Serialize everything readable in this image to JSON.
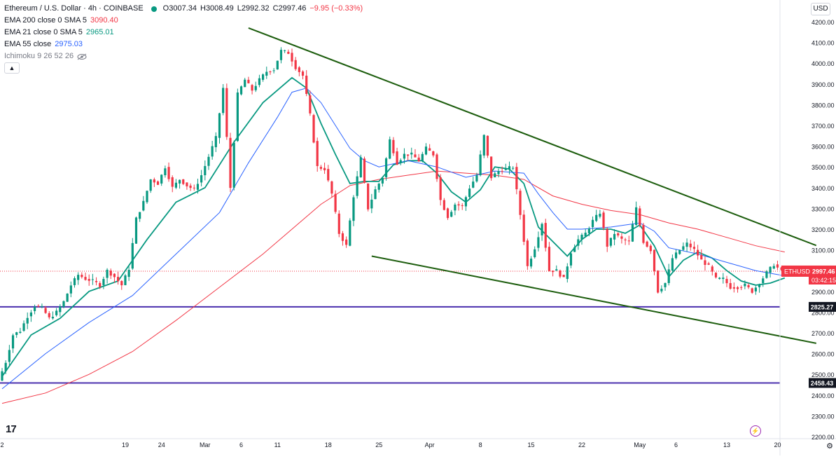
{
  "header": {
    "symbol_title": "Ethereum / U.S. Dollar · 4h · COINBASE",
    "ohlc": {
      "open": "O3007.34",
      "high": "H3008.49",
      "low": "L2992.32",
      "close": "C2997.46",
      "change": "−9.95 (−0.33%)"
    },
    "indicators": [
      {
        "label": "EMA 200 close 0 SMA 5",
        "value": "3090.40",
        "color": "#f23645"
      },
      {
        "label": "EMA 21 close 0 SMA 5",
        "value": "2965.01",
        "color": "#089981"
      },
      {
        "label": "EMA 55 close",
        "value": "2975.03",
        "color": "#2962ff"
      },
      {
        "label": "Ichimoku 9 26 52 26",
        "value": "",
        "color": "#787b86"
      }
    ]
  },
  "currency": "USD",
  "price_labels": {
    "last_symbol": "ETHUSD",
    "last_price": "2997.46",
    "countdown": "03:42:15",
    "level_upper": "2825.27",
    "level_lower": "2458.43"
  },
  "colors": {
    "up": "#089981",
    "down": "#f23645",
    "ema200": "#f23645",
    "ema21": "#089981",
    "ema55": "#2962ff",
    "trendline": "#1e5e0f",
    "horizontal": "#4a2fae"
  },
  "chart_data": {
    "type": "line",
    "title": "Ethereum / U.S. Dollar · 4h · COINBASE",
    "xlabel": "",
    "ylabel": "",
    "ylim": [
      2200,
      4250
    ],
    "y_ticks": [
      2200,
      2300,
      2400,
      2500,
      2600,
      2700,
      2800,
      2900,
      3000,
      3100,
      3200,
      3300,
      3400,
      3500,
      3600,
      3700,
      3800,
      3900,
      4000,
      4100,
      4200
    ],
    "x_ticks": [
      "2",
      "19",
      "24",
      "Mar",
      "6",
      "11",
      "18",
      "25",
      "Apr",
      "8",
      "15",
      "22",
      "May",
      "6",
      "13",
      "20"
    ],
    "x_tick_days": [
      0,
      17,
      22,
      28,
      33,
      38,
      45,
      52,
      59,
      66,
      73,
      80,
      88,
      93,
      100,
      107
    ],
    "grid": false,
    "price_path": [
      [
        0,
        2470
      ],
      [
        1,
        2560
      ],
      [
        2,
        2690
      ],
      [
        3,
        2710
      ],
      [
        4,
        2780
      ],
      [
        5,
        2830
      ],
      [
        6,
        2820
      ],
      [
        7,
        2770
      ],
      [
        8,
        2800
      ],
      [
        9,
        2850
      ],
      [
        10,
        2930
      ],
      [
        11,
        2980
      ],
      [
        12,
        2960
      ],
      [
        13,
        2950
      ],
      [
        14,
        2930
      ],
      [
        15,
        3000
      ],
      [
        16,
        2970
      ],
      [
        17,
        2930
      ],
      [
        18,
        3010
      ],
      [
        19,
        3250
      ],
      [
        20,
        3330
      ],
      [
        21,
        3440
      ],
      [
        22,
        3420
      ],
      [
        23,
        3500
      ],
      [
        24,
        3400
      ],
      [
        25,
        3440
      ],
      [
        26,
        3410
      ],
      [
        27,
        3390
      ],
      [
        28,
        3460
      ],
      [
        29,
        3550
      ],
      [
        30,
        3640
      ],
      [
        31,
        3880
      ],
      [
        32,
        3400
      ],
      [
        33,
        3850
      ],
      [
        34,
        3920
      ],
      [
        35,
        3870
      ],
      [
        36,
        3920
      ],
      [
        37,
        3960
      ],
      [
        38,
        3970
      ],
      [
        39,
        4060
      ],
      [
        40,
        4050
      ],
      [
        41,
        3980
      ],
      [
        42,
        3940
      ],
      [
        43,
        3750
      ],
      [
        44,
        3500
      ],
      [
        45,
        3490
      ],
      [
        46,
        3370
      ],
      [
        47,
        3180
      ],
      [
        48,
        3120
      ],
      [
        49,
        3360
      ],
      [
        50,
        3540
      ],
      [
        51,
        3300
      ],
      [
        52,
        3390
      ],
      [
        53,
        3450
      ],
      [
        54,
        3630
      ],
      [
        55,
        3520
      ],
      [
        56,
        3560
      ],
      [
        57,
        3560
      ],
      [
        58,
        3530
      ],
      [
        59,
        3590
      ],
      [
        60,
        3560
      ],
      [
        61,
        3340
      ],
      [
        62,
        3260
      ],
      [
        63,
        3320
      ],
      [
        64,
        3310
      ],
      [
        65,
        3400
      ],
      [
        66,
        3460
      ],
      [
        67,
        3650
      ],
      [
        68,
        3450
      ],
      [
        69,
        3480
      ],
      [
        70,
        3490
      ],
      [
        71,
        3500
      ],
      [
        72,
        3270
      ],
      [
        73,
        3020
      ],
      [
        74,
        3110
      ],
      [
        75,
        3230
      ],
      [
        76,
        3000
      ],
      [
        77,
        3000
      ],
      [
        78,
        2960
      ],
      [
        79,
        3090
      ],
      [
        80,
        3150
      ],
      [
        81,
        3180
      ],
      [
        82,
        3240
      ],
      [
        83,
        3280
      ],
      [
        84,
        3120
      ],
      [
        85,
        3180
      ],
      [
        86,
        3150
      ],
      [
        87,
        3140
      ],
      [
        88,
        3300
      ],
      [
        89,
        3140
      ],
      [
        90,
        3100
      ],
      [
        91,
        2900
      ],
      [
        92,
        2940
      ],
      [
        93,
        3060
      ],
      [
        94,
        3100
      ],
      [
        95,
        3130
      ],
      [
        96,
        3100
      ],
      [
        97,
        3050
      ],
      [
        98,
        3020
      ],
      [
        99,
        2960
      ],
      [
        100,
        2960
      ],
      [
        101,
        2920
      ],
      [
        102,
        2920
      ],
      [
        103,
        2930
      ],
      [
        104,
        2900
      ],
      [
        105,
        2940
      ],
      [
        106,
        2990
      ],
      [
        107,
        3030
      ],
      [
        108,
        2997
      ]
    ],
    "series": [
      {
        "name": "EMA 200 close 0 SMA 5",
        "points": [
          [
            0,
            2360
          ],
          [
            6,
            2410
          ],
          [
            12,
            2500
          ],
          [
            18,
            2610
          ],
          [
            24,
            2760
          ],
          [
            30,
            2920
          ],
          [
            36,
            3080
          ],
          [
            40,
            3200
          ],
          [
            44,
            3320
          ],
          [
            48,
            3410
          ],
          [
            52,
            3440
          ],
          [
            56,
            3460
          ],
          [
            60,
            3480
          ],
          [
            64,
            3470
          ],
          [
            68,
            3460
          ],
          [
            72,
            3440
          ],
          [
            76,
            3360
          ],
          [
            80,
            3320
          ],
          [
            84,
            3290
          ],
          [
            88,
            3270
          ],
          [
            92,
            3230
          ],
          [
            96,
            3200
          ],
          [
            100,
            3160
          ],
          [
            104,
            3120
          ],
          [
            108,
            3090
          ]
        ]
      },
      {
        "name": "EMA 21 close 0 SMA 5",
        "points": [
          [
            0,
            2490
          ],
          [
            4,
            2690
          ],
          [
            8,
            2770
          ],
          [
            12,
            2900
          ],
          [
            16,
            2950
          ],
          [
            20,
            3150
          ],
          [
            24,
            3330
          ],
          [
            28,
            3400
          ],
          [
            32,
            3620
          ],
          [
            36,
            3810
          ],
          [
            40,
            3930
          ],
          [
            42,
            3880
          ],
          [
            44,
            3710
          ],
          [
            46,
            3560
          ],
          [
            48,
            3420
          ],
          [
            50,
            3430
          ],
          [
            52,
            3430
          ],
          [
            54,
            3510
          ],
          [
            56,
            3530
          ],
          [
            58,
            3530
          ],
          [
            60,
            3470
          ],
          [
            62,
            3380
          ],
          [
            64,
            3330
          ],
          [
            66,
            3390
          ],
          [
            68,
            3500
          ],
          [
            70,
            3490
          ],
          [
            72,
            3420
          ],
          [
            74,
            3210
          ],
          [
            76,
            3140
          ],
          [
            78,
            3070
          ],
          [
            80,
            3150
          ],
          [
            82,
            3200
          ],
          [
            84,
            3200
          ],
          [
            86,
            3180
          ],
          [
            88,
            3220
          ],
          [
            90,
            3120
          ],
          [
            92,
            2970
          ],
          [
            94,
            3050
          ],
          [
            96,
            3090
          ],
          [
            98,
            3060
          ],
          [
            100,
            3000
          ],
          [
            102,
            2950
          ],
          [
            104,
            2930
          ],
          [
            106,
            2940
          ],
          [
            108,
            2965
          ]
        ]
      },
      {
        "name": "EMA 55 close",
        "points": [
          [
            0,
            2430
          ],
          [
            6,
            2600
          ],
          [
            12,
            2750
          ],
          [
            18,
            2880
          ],
          [
            24,
            3080
          ],
          [
            30,
            3280
          ],
          [
            34,
            3520
          ],
          [
            38,
            3740
          ],
          [
            40,
            3860
          ],
          [
            42,
            3880
          ],
          [
            44,
            3810
          ],
          [
            46,
            3700
          ],
          [
            48,
            3590
          ],
          [
            50,
            3530
          ],
          [
            52,
            3500
          ],
          [
            56,
            3530
          ],
          [
            60,
            3500
          ],
          [
            64,
            3450
          ],
          [
            68,
            3480
          ],
          [
            72,
            3470
          ],
          [
            74,
            3370
          ],
          [
            76,
            3280
          ],
          [
            78,
            3200
          ],
          [
            80,
            3200
          ],
          [
            84,
            3210
          ],
          [
            88,
            3230
          ],
          [
            90,
            3190
          ],
          [
            92,
            3110
          ],
          [
            96,
            3080
          ],
          [
            100,
            3040
          ],
          [
            104,
            3000
          ],
          [
            108,
            2975
          ]
        ]
      }
    ],
    "annotations": {
      "trendlines": [
        {
          "name": "upper-trendline",
          "from": [
            34,
            4170
          ],
          "to": [
            108,
            3180
          ]
        },
        {
          "name": "lower-trendline",
          "from": [
            51,
            3070
          ],
          "to": [
            108,
            2680
          ]
        }
      ],
      "horizontal_levels": [
        2825.27,
        2458.43
      ],
      "last_price": 2997.46
    },
    "axis_position": "right"
  }
}
